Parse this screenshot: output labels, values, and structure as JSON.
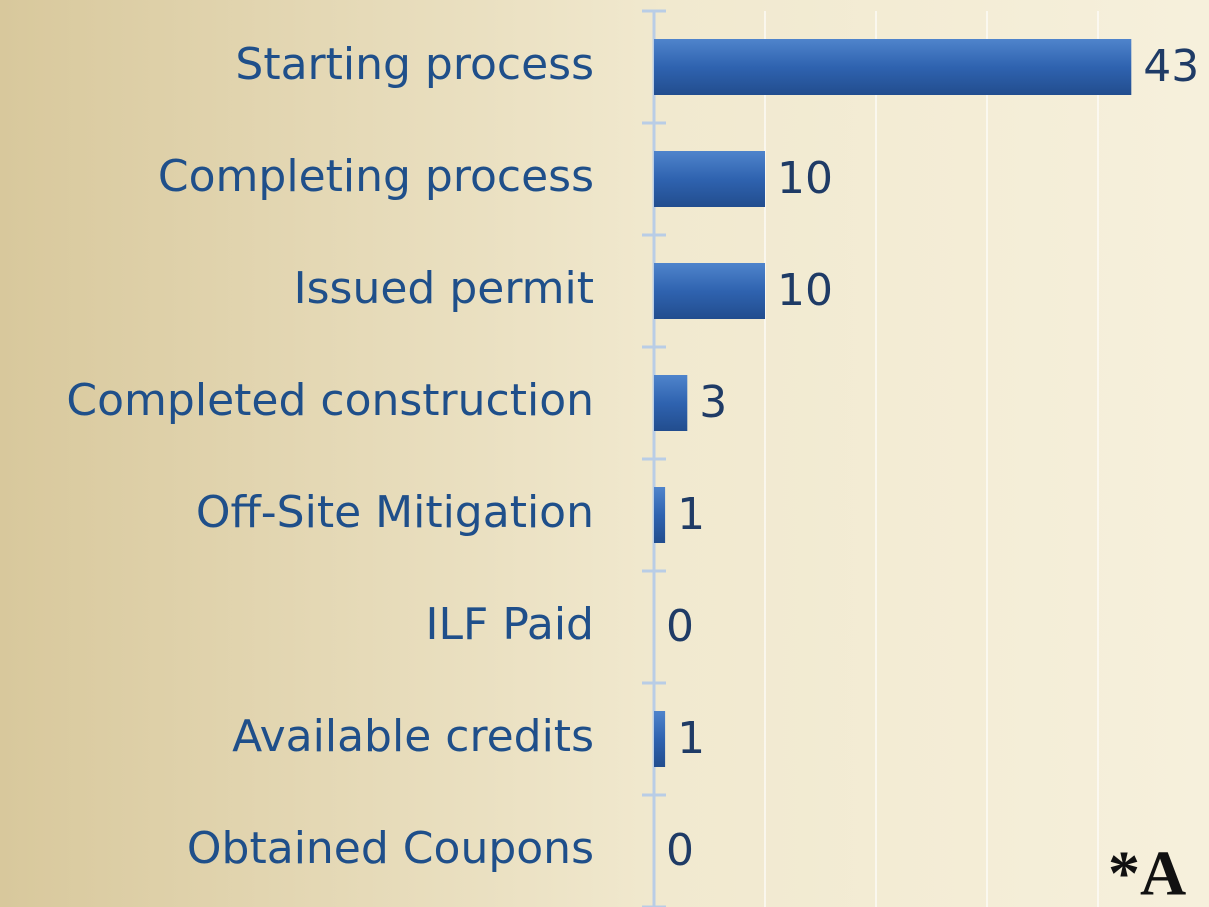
{
  "chart_data": {
    "type": "hbar",
    "categories": [
      "Starting process",
      "Completing process",
      "Issued permit",
      "Completed construction",
      "Off-Site Mitigation",
      "ILF Paid",
      "Available credits",
      "Obtained Coupons"
    ],
    "values": [
      43,
      10,
      10,
      3,
      1,
      0,
      1,
      0
    ],
    "color": "#2f63b0",
    "xlim": [
      0,
      50
    ],
    "xticks": [
      0,
      10,
      20,
      30,
      40
    ],
    "grid": true,
    "annotation": "*A"
  }
}
